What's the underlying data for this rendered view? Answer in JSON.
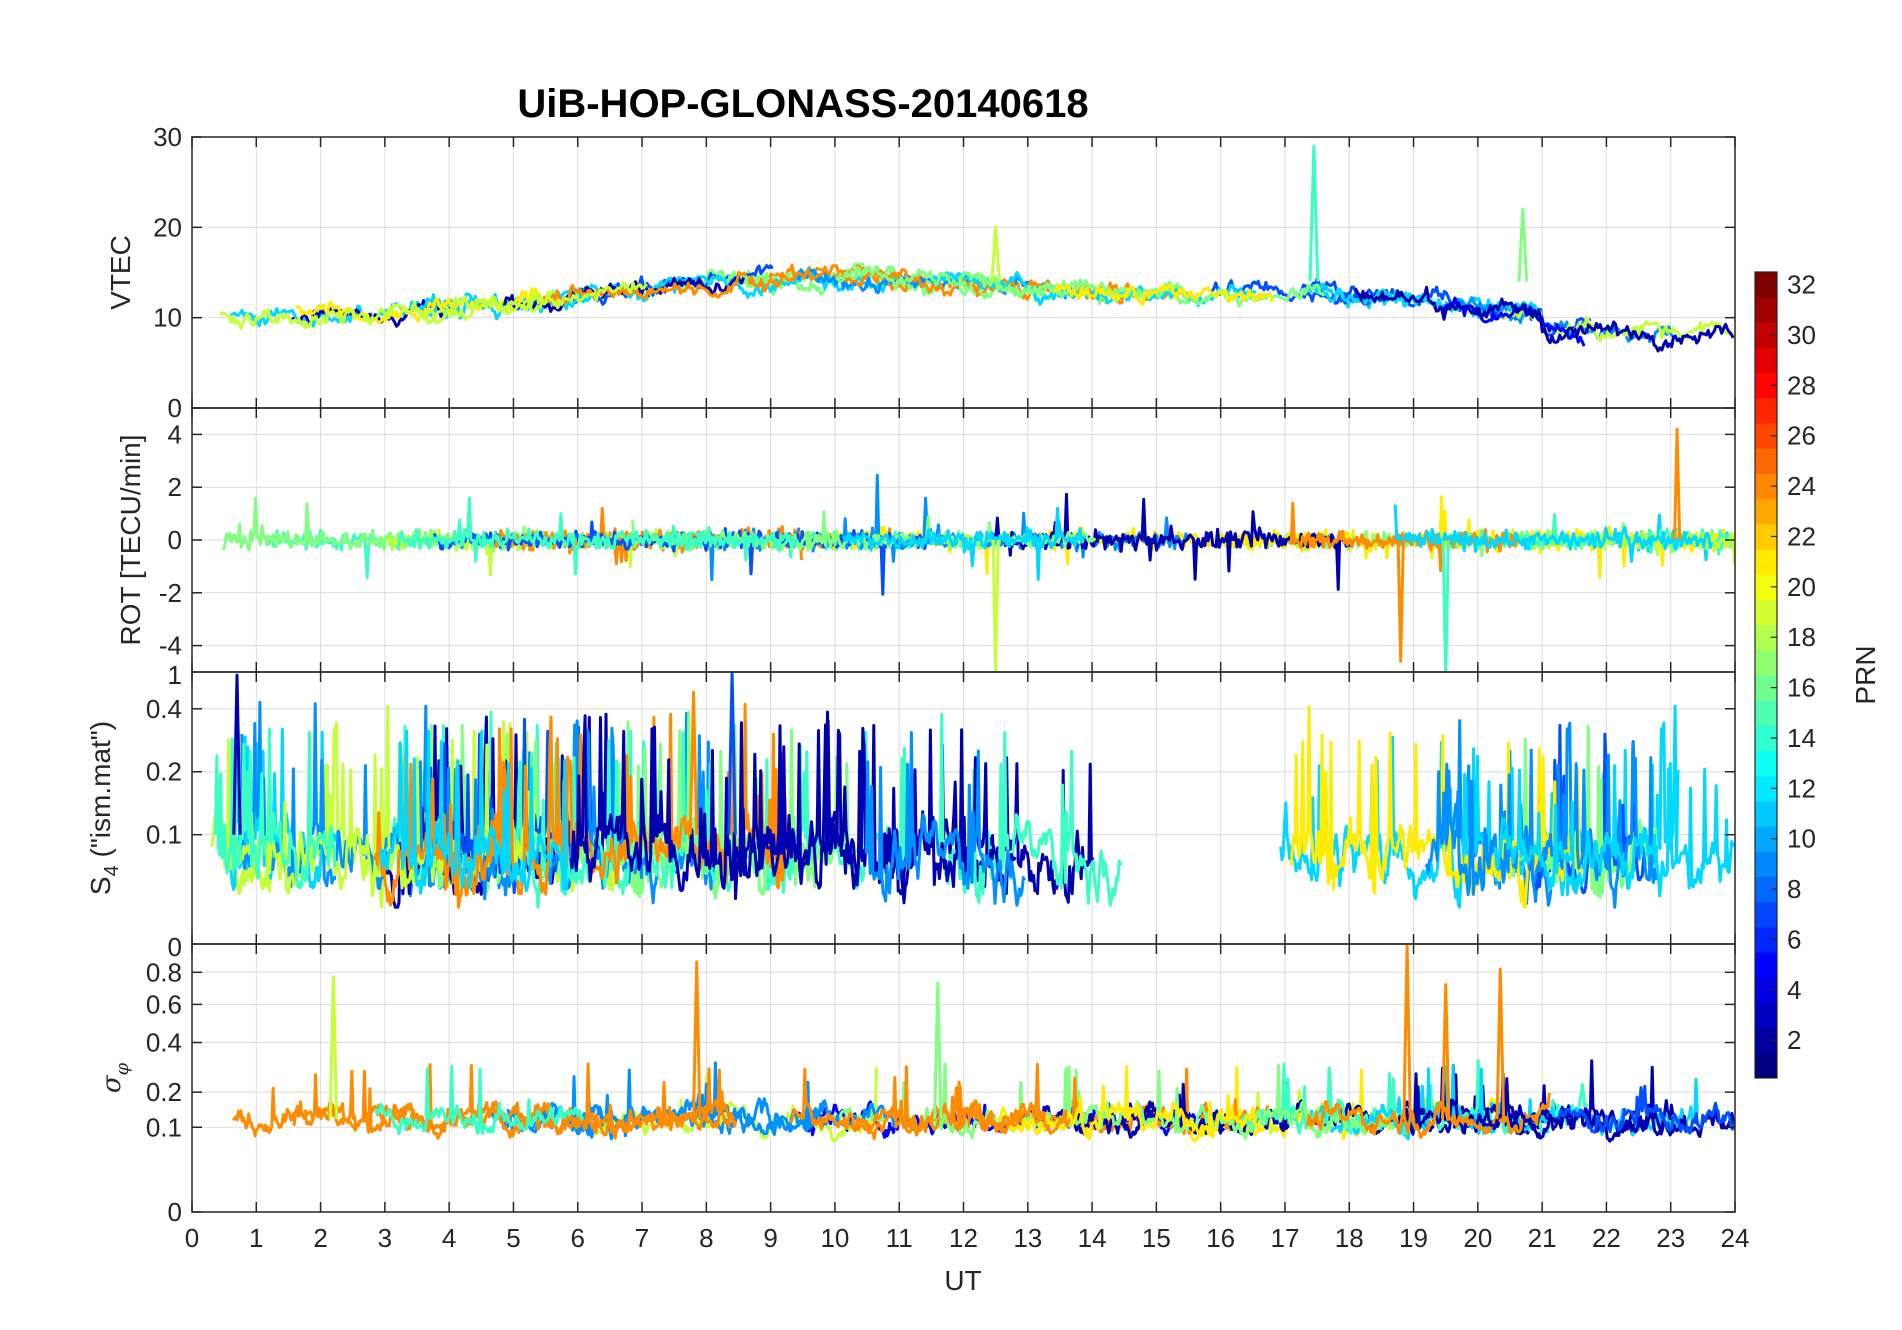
{
  "chart_data": {
    "type": "line",
    "title": "UiB-HOP-GLONASS-20140618",
    "xlabel": "UT",
    "xlim": [
      0,
      24
    ],
    "x_ticks": [
      "0",
      "1",
      "2",
      "3",
      "4",
      "5",
      "6",
      "7",
      "8",
      "9",
      "10",
      "11",
      "12",
      "13",
      "14",
      "15",
      "16",
      "17",
      "18",
      "19",
      "20",
      "21",
      "22",
      "23",
      "24"
    ],
    "panels": [
      {
        "id": "vtec",
        "ylabel": "VTEC",
        "ylim": [
          0,
          30
        ],
        "y_ticks": [
          "0",
          "10",
          "20",
          "30"
        ],
        "typical_range": [
          7,
          20
        ],
        "notable_peaks": [
          {
            "x": 17.45,
            "y": 29,
            "prn": 13
          },
          {
            "x": 20.7,
            "y": 22,
            "prn": 16
          },
          {
            "x": 12.5,
            "y": 20,
            "prn": 19
          }
        ]
      },
      {
        "id": "rot",
        "ylabel": "ROT [TECU/min]",
        "ylim": [
          -5,
          5
        ],
        "y_ticks": [
          "-4",
          "-2",
          "0",
          "2",
          "4"
        ],
        "notable_peaks": [
          {
            "x": 23.1,
            "y": 4.2,
            "prn": 24
          },
          {
            "x": 12.5,
            "y": -5,
            "prn": 19
          },
          {
            "x": 18.8,
            "y": -4.6,
            "prn": 23
          },
          {
            "x": 19.5,
            "y": -5.3,
            "prn": 13
          }
        ]
      },
      {
        "id": "s4",
        "ylabel": "S4 (\"ism.mat\")",
        "ylabel_main": "S",
        "ylabel_sub": "4",
        "ylabel_rest": " (\"ism.mat\")",
        "ylim": [
          0.03,
          0.6
        ],
        "scale": "log",
        "y_ticks": [
          "0.1",
          "0.2",
          "0.4"
        ],
        "top_label": "1",
        "notable_peaks": [
          {
            "x": 8.4,
            "y": 0.6,
            "prn": 5
          },
          {
            "x": 0.7,
            "y": 0.58,
            "prn": 1
          },
          {
            "x": 7.8,
            "y": 0.48,
            "prn": 24
          }
        ]
      },
      {
        "id": "sigma_phi",
        "ylabel": "σφ",
        "ylabel_main": "σ",
        "ylabel_sub": "φ",
        "ylim": [
          0,
          1
        ],
        "scale": "sqrt",
        "y_ticks": [
          "0",
          "0.1",
          "0.2",
          "0.4",
          "0.6",
          "0.8"
        ],
        "top_label": "0",
        "notable_peaks": [
          {
            "x": 18.9,
            "y": 1.0,
            "prn": 23
          },
          {
            "x": 7.85,
            "y": 0.87,
            "prn": 23
          },
          {
            "x": 20.35,
            "y": 0.82,
            "prn": 23
          },
          {
            "x": 2.2,
            "y": 0.77,
            "prn": 18
          },
          {
            "x": 11.6,
            "y": 0.73,
            "prn": 17
          },
          {
            "x": 19.5,
            "y": 0.72,
            "prn": 23
          }
        ]
      }
    ],
    "colorbar": {
      "label": "PRN",
      "colormap": "jet",
      "range": [
        1,
        32
      ],
      "ticks": [
        "2",
        "4",
        "6",
        "8",
        "10",
        "12",
        "14",
        "16",
        "18",
        "20",
        "22",
        "24",
        "26",
        "28",
        "30",
        "32"
      ]
    },
    "series": [
      {
        "prn": 1,
        "color": "#0000b0"
      },
      {
        "prn": 3,
        "color": "#0000ff"
      },
      {
        "prn": 6,
        "color": "#0050ff"
      },
      {
        "prn": 8,
        "color": "#0090ff"
      },
      {
        "prn": 11,
        "color": "#00d8ff"
      },
      {
        "prn": 13,
        "color": "#3affc4"
      },
      {
        "prn": 16,
        "color": "#80ff80"
      },
      {
        "prn": 18,
        "color": "#c4ff3a"
      },
      {
        "prn": 20,
        "color": "#ffec00"
      },
      {
        "prn": 23,
        "color": "#ff8c00"
      }
    ]
  }
}
